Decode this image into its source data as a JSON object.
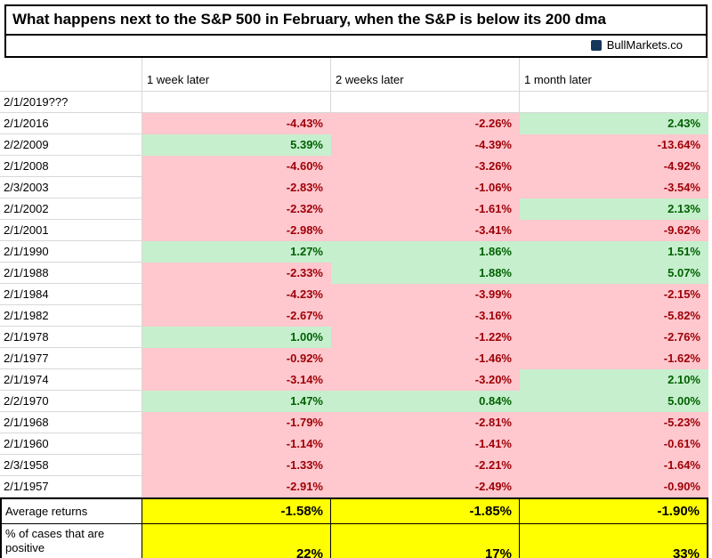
{
  "title": "What happens next to the S&P 500 in February, when the S&P is below its 200 dma",
  "brand": {
    "name": "BullMarkets.co",
    "icon": "brand-logo-icon"
  },
  "colors": {
    "negative_bg": "#FFC7CE",
    "negative_text": "#9C0006",
    "positive_bg": "#C6EFCE",
    "positive_text": "#006100",
    "summary_bg": "#FFFF00",
    "gridline": "#d8d8d8"
  },
  "chart_data": {
    "type": "table",
    "title": "What happens next to the S&P 500 in February, when the S&P is below its 200 dma",
    "units": "percent return",
    "columns": [
      "",
      "1 week later",
      "2 weeks later",
      "1 month later"
    ],
    "rows": [
      {
        "date": "2/1/2019???",
        "values": [
          "",
          "",
          ""
        ]
      },
      {
        "date": "2/1/2016",
        "values": [
          "-4.43%",
          "-2.26%",
          "2.43%"
        ]
      },
      {
        "date": "2/2/2009",
        "values": [
          "5.39%",
          "-4.39%",
          "-13.64%"
        ]
      },
      {
        "date": "2/1/2008",
        "values": [
          "-4.60%",
          "-3.26%",
          "-4.92%"
        ]
      },
      {
        "date": "2/3/2003",
        "values": [
          "-2.83%",
          "-1.06%",
          "-3.54%"
        ]
      },
      {
        "date": "2/1/2002",
        "values": [
          "-2.32%",
          "-1.61%",
          "2.13%"
        ]
      },
      {
        "date": "2/1/2001",
        "values": [
          "-2.98%",
          "-3.41%",
          "-9.62%"
        ]
      },
      {
        "date": "2/1/1990",
        "values": [
          "1.27%",
          "1.86%",
          "1.51%"
        ]
      },
      {
        "date": "2/1/1988",
        "values": [
          "-2.33%",
          "1.88%",
          "5.07%"
        ]
      },
      {
        "date": "2/1/1984",
        "values": [
          "-4.23%",
          "-3.99%",
          "-2.15%"
        ]
      },
      {
        "date": "2/1/1982",
        "values": [
          "-2.67%",
          "-3.16%",
          "-5.82%"
        ]
      },
      {
        "date": "2/1/1978",
        "values": [
          "1.00%",
          "-1.22%",
          "-2.76%"
        ]
      },
      {
        "date": "2/1/1977",
        "values": [
          "-0.92%",
          "-1.46%",
          "-1.62%"
        ]
      },
      {
        "date": "2/1/1974",
        "values": [
          "-3.14%",
          "-3.20%",
          "2.10%"
        ]
      },
      {
        "date": "2/2/1970",
        "values": [
          "1.47%",
          "0.84%",
          "5.00%"
        ]
      },
      {
        "date": "2/1/1968",
        "values": [
          "-1.79%",
          "-2.81%",
          "-5.23%"
        ]
      },
      {
        "date": "2/1/1960",
        "values": [
          "-1.14%",
          "-1.41%",
          "-0.61%"
        ]
      },
      {
        "date": "2/3/1958",
        "values": [
          "-1.33%",
          "-2.21%",
          "-1.64%"
        ]
      },
      {
        "date": "2/1/1957",
        "values": [
          "-2.91%",
          "-2.49%",
          "-0.90%"
        ]
      }
    ],
    "summary": {
      "average_label": "Average returns",
      "average_values": [
        "-1.58%",
        "-1.85%",
        "-1.90%"
      ],
      "positive_label": "% of cases that are positive",
      "positive_values": [
        "22%",
        "17%",
        "33%"
      ]
    }
  }
}
